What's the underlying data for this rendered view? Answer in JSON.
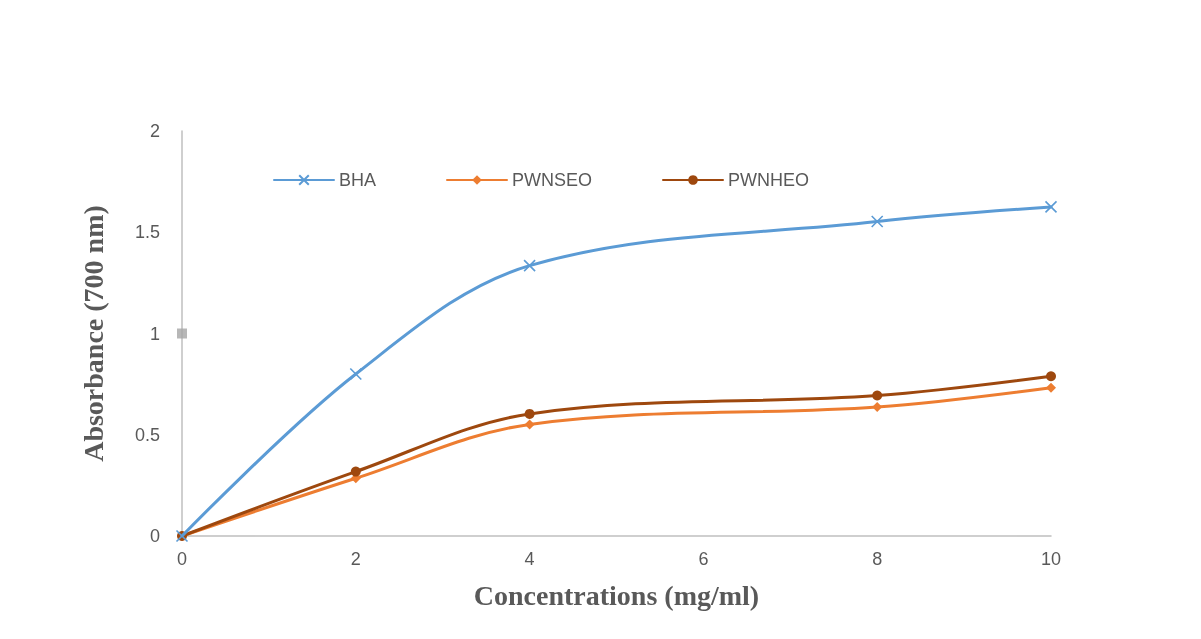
{
  "chart_data": {
    "type": "line",
    "xlabel": "Concentrations (mg/ml)",
    "ylabel": "Absorbance (700 nm)",
    "xlim": [
      0,
      10
    ],
    "xticks": [
      0,
      2,
      4,
      6,
      8,
      10
    ],
    "ylim": [
      0,
      2
    ],
    "yticks": [
      0,
      0.5,
      1,
      1.5,
      2
    ],
    "grid": false,
    "legend": "top",
    "line_style": "solid",
    "series": [
      {
        "name": "BHA",
        "color": "#5b9bd5",
        "marker": "cross",
        "x": [
          0,
          2,
          4,
          8,
          10
        ],
        "values": [
          0,
          0.8,
          1.335,
          1.553,
          1.625
        ]
      },
      {
        "name": "PWNSEO",
        "color": "#ed7d31",
        "marker": "diamond",
        "x": [
          0,
          2,
          4,
          8,
          10
        ],
        "values": [
          0,
          0.285,
          0.551,
          0.637,
          0.732
        ]
      },
      {
        "name": "PWNHEO",
        "color": "#9e480e",
        "marker": "circle",
        "x": [
          0,
          2,
          4,
          8,
          10
        ],
        "values": [
          0,
          0.318,
          0.603,
          0.694,
          0.789
        ]
      },
      {
        "type": "scatter",
        "color": "#a5a5a5",
        "marker": "square",
        "x": [
          0
        ],
        "values": [
          1
        ]
      }
    ]
  }
}
